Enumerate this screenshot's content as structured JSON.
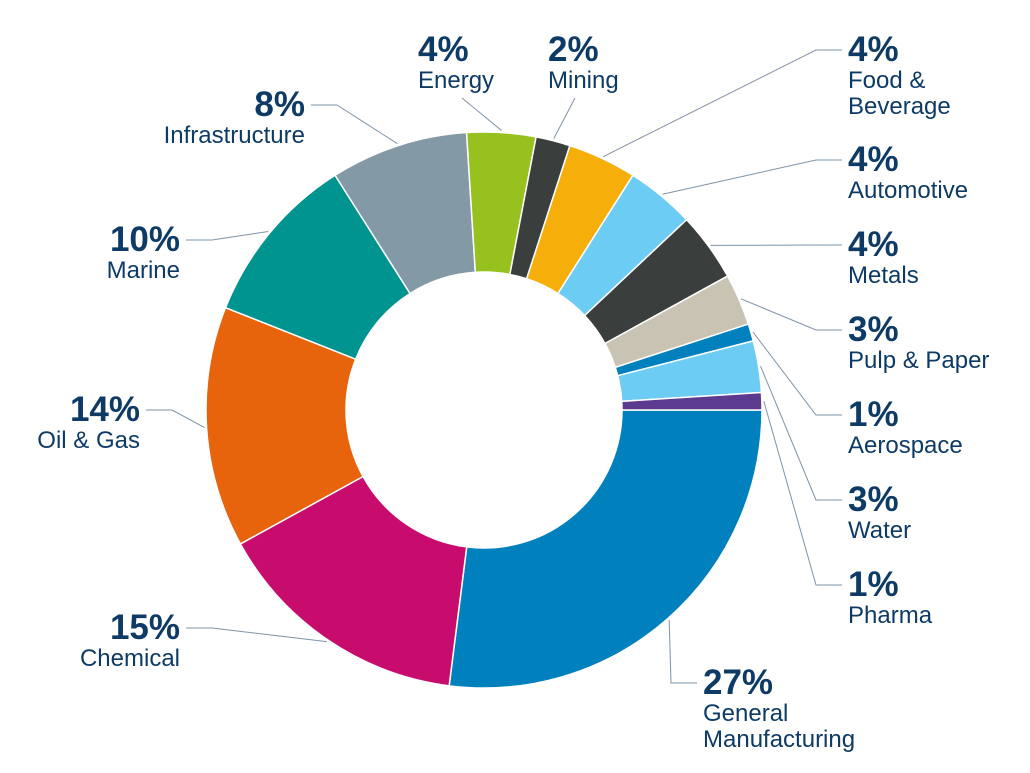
{
  "chart_data": {
    "type": "donut",
    "categories": [
      "General Manufacturing",
      "Chemical",
      "Oil & Gas",
      "Marine",
      "Infrastructure",
      "Energy",
      "Mining",
      "Food & Beverage",
      "Automotive",
      "Metals",
      "Pulp & Paper",
      "Aerospace",
      "Water",
      "Pharma"
    ],
    "values": [
      27,
      15,
      14,
      10,
      8,
      4,
      2,
      4,
      4,
      4,
      3,
      1,
      3,
      1
    ],
    "value_labels": [
      "27%",
      "15%",
      "14%",
      "10%",
      "8%",
      "4%",
      "2%",
      "4%",
      "4%",
      "4%",
      "3%",
      "1%",
      "3%",
      "1%"
    ],
    "colors": [
      "#0080bc",
      "#c80c6e",
      "#e8640c",
      "#009490",
      "#8399a5",
      "#97c11f",
      "#3a3e3d",
      "#f5ae0a",
      "#6cccf4",
      "#3a3e3d",
      "#c9c3b4",
      "#0080bc",
      "#6cccf4",
      "#5b3a8f"
    ]
  }
}
